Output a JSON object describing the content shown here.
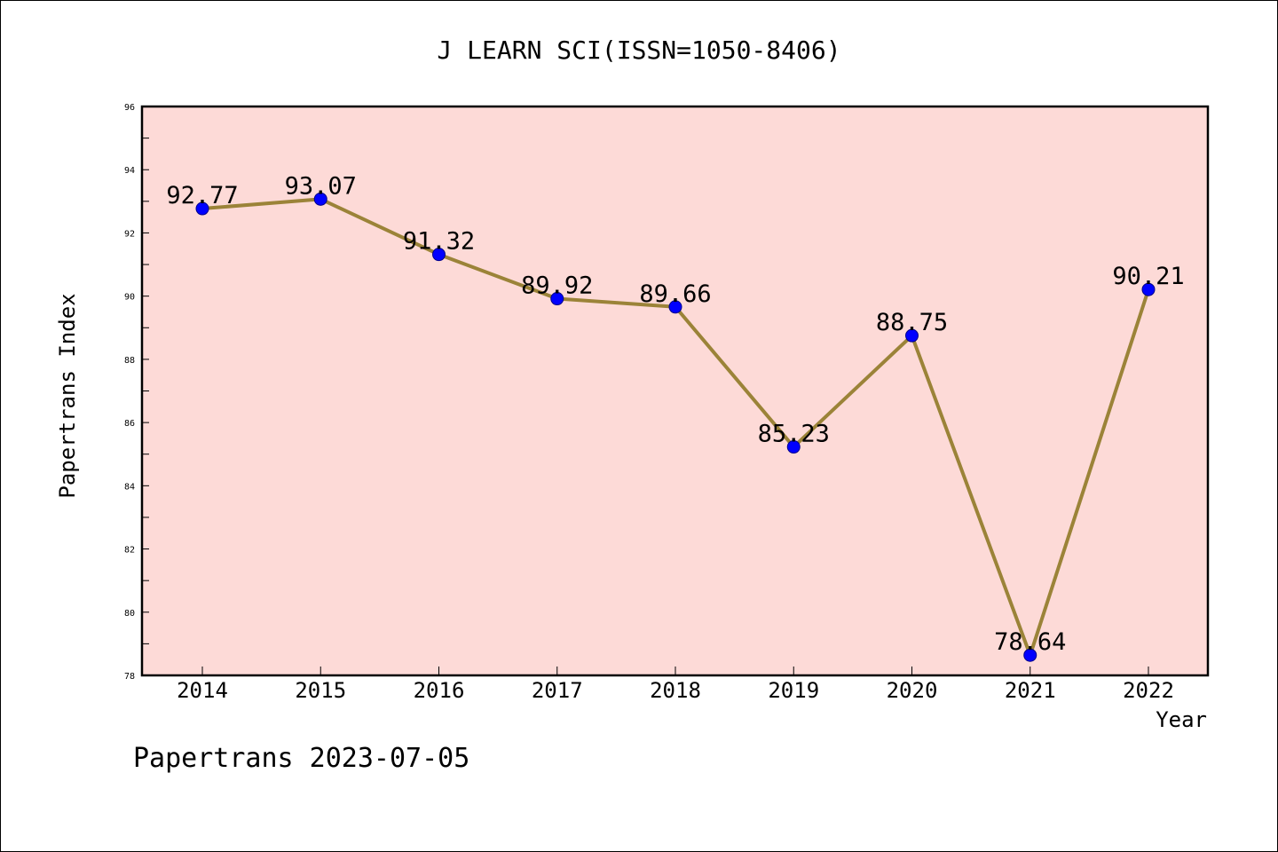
{
  "chart_data": {
    "type": "line",
    "title": "J LEARN SCI(ISSN=1050-8406)",
    "xlabel": "Year",
    "ylabel": "Papertrans Index",
    "categories": [
      "2014",
      "2015",
      "2016",
      "2017",
      "2018",
      "2019",
      "2020",
      "2021",
      "2022"
    ],
    "series": [
      {
        "values": [
          92.77,
          93.07,
          91.32,
          89.92,
          89.66,
          85.23,
          88.75,
          78.64,
          90.21
        ],
        "labels": [
          "92.77",
          "93.07",
          "91.32",
          "89.92",
          "89.66",
          "85.23",
          "88.75",
          "78.64",
          "90.21"
        ]
      }
    ],
    "ylim": [
      78,
      96
    ],
    "yticks": [
      "78",
      "80",
      "82",
      "84",
      "86",
      "88",
      "90",
      "92",
      "94",
      "96"
    ],
    "grid": false,
    "legend": "none",
    "colors": {
      "plot_background": "#fddad7",
      "line": "#9b8338",
      "marker": "#0000ff"
    }
  },
  "footer": "Papertrans 2023-07-05"
}
